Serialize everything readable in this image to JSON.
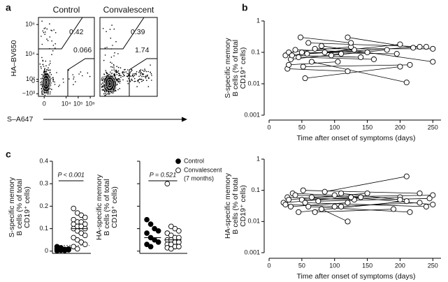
{
  "panel_labels": [
    "a",
    "b",
    "c"
  ],
  "chart_data": [
    {
      "type": "flow",
      "title": "Control",
      "ylabel": "HA–BV650",
      "xlabel": "S–A647",
      "xlim": [
        -400,
        2200000
      ],
      "ylim": [
        -1500,
        3000000
      ],
      "xticks": [
        0,
        {
          "value": 10000,
          "label": "10⁴"
        },
        {
          "value": 100000,
          "label": "10⁵"
        },
        {
          "value": 1000000,
          "label": "10⁶"
        }
      ],
      "yticks": [
        {
          "value": -1000,
          "label": "−10³"
        },
        0,
        {
          "value": 100,
          "label": "10²"
        },
        {
          "value": 10000,
          "label": "10⁴"
        },
        {
          "value": 1000000,
          "label": "10⁶"
        }
      ],
      "annotations": [
        "0.42",
        "0.066"
      ]
    },
    {
      "type": "flow",
      "title": "Convalescent",
      "annotations": [
        "0.39",
        "1.74"
      ]
    },
    {
      "type": "line",
      "ylabel": [
        "S-specific memory",
        "B cells (% of total",
        "CD19⁺ cells)"
      ],
      "xlabel": "Time after onset of symptoms (days)",
      "log_y": true,
      "color": "#000000",
      "xlim": [
        -7.5,
        262.5
      ],
      "ylim": [
        0.001,
        1
      ],
      "xticks": [
        0,
        50,
        100,
        150,
        200,
        250
      ],
      "yticks": [
        0.001,
        0.01,
        0.1,
        1
      ],
      "series": [
        {
          "x": [
            25,
            130
          ],
          "values": [
            0.08,
            0.12
          ]
        },
        {
          "x": [
            28,
            120
          ],
          "values": [
            0.03,
            0.025
          ]
        },
        {
          "x": [
            30,
            125
          ],
          "values": [
            0.1,
            0.15
          ]
        },
        {
          "x": [
            33,
            110
          ],
          "values": [
            0.06,
            0.09
          ]
        },
        {
          "x": [
            35,
            140
          ],
          "values": [
            0.08,
            0.07
          ]
        },
        {
          "x": [
            40,
            150
          ],
          "values": [
            0.12,
            0.1
          ]
        },
        {
          "x": [
            45,
            160
          ],
          "values": [
            0.07,
            0.06
          ]
        },
        {
          "x": [
            48,
            125
          ],
          "values": [
            0.3,
            0.2
          ]
        },
        {
          "x": [
            52,
            215
          ],
          "values": [
            0.035,
            0.04
          ]
        },
        {
          "x": [
            55,
            200
          ],
          "values": [
            0.015,
            0.035
          ]
        },
        {
          "x": [
            58,
            230
          ],
          "values": [
            0.09,
            0.15
          ]
        },
        {
          "x": [
            60,
            240
          ],
          "values": [
            0.2,
            0.15
          ]
        },
        {
          "x": [
            65,
            210
          ],
          "values": [
            0.05,
            0.011
          ]
        },
        {
          "x": [
            70,
            250
          ],
          "values": [
            0.13,
            0.13
          ]
        },
        {
          "x": [
            80,
            250
          ],
          "values": [
            0.16,
            0.05
          ]
        },
        {
          "x": [
            85,
            200
          ],
          "values": [
            0.1,
            0.18
          ]
        },
        {
          "x": [
            95,
            180
          ],
          "values": [
            0.08,
            0.12
          ]
        },
        {
          "x": [
            120,
            220
          ],
          "values": [
            0.3,
            0.14
          ]
        },
        {
          "x": [
            30,
            105
          ],
          "values": [
            0.04,
            0.05
          ]
        },
        {
          "x": [
            50,
            195
          ],
          "values": [
            0.1,
            0.09
          ]
        }
      ]
    },
    {
      "type": "line",
      "ylabel": [
        "HA-specific memory",
        "B cells (% of total",
        "CD19⁺ cells)"
      ],
      "xlabel": "Time after onset of symptoms (days)",
      "log_y": true,
      "color": "#000000",
      "xlim": [
        -7.5,
        262.5
      ],
      "ylim": [
        0.001,
        1
      ],
      "xticks": [
        0,
        50,
        100,
        150,
        200,
        250
      ],
      "yticks": [
        0.001,
        0.01,
        0.1,
        1
      ],
      "series": [
        {
          "x": [
            22,
            125
          ],
          "values": [
            0.04,
            0.06
          ]
        },
        {
          "x": [
            25,
            110
          ],
          "values": [
            0.035,
            0.03
          ]
        },
        {
          "x": [
            28,
            130
          ],
          "values": [
            0.06,
            0.05
          ]
        },
        {
          "x": [
            30,
            150
          ],
          "values": [
            0.05,
            0.08
          ]
        },
        {
          "x": [
            33,
            120
          ],
          "values": [
            0.03,
            0.04
          ]
        },
        {
          "x": [
            36,
            100
          ],
          "values": [
            0.08,
            0.07
          ]
        },
        {
          "x": [
            40,
            140
          ],
          "values": [
            0.07,
            0.06
          ]
        },
        {
          "x": [
            45,
            210
          ],
          "values": [
            0.02,
            0.045
          ]
        },
        {
          "x": [
            50,
            200
          ],
          "values": [
            0.05,
            0.06
          ]
        },
        {
          "x": [
            52,
            230
          ],
          "values": [
            0.1,
            0.08
          ]
        },
        {
          "x": [
            55,
            240
          ],
          "values": [
            0.04,
            0.03
          ]
        },
        {
          "x": [
            60,
            215
          ],
          "values": [
            0.03,
            0.02
          ]
        },
        {
          "x": [
            65,
            250
          ],
          "values": [
            0.06,
            0.07
          ]
        },
        {
          "x": [
            70,
            190
          ],
          "values": [
            0.02,
            0.025
          ]
        },
        {
          "x": [
            75,
            245
          ],
          "values": [
            0.045,
            0.055
          ]
        },
        {
          "x": [
            80,
            120
          ],
          "values": [
            0.025,
            0.01
          ]
        },
        {
          "x": [
            85,
            210
          ],
          "values": [
            0.09,
            0.28
          ]
        },
        {
          "x": [
            100,
            230
          ],
          "values": [
            0.03,
            0.04
          ]
        },
        {
          "x": [
            110,
            200
          ],
          "values": [
            0.08,
            0.05
          ]
        },
        {
          "x": [
            125,
            250
          ],
          "values": [
            0.06,
            0.035
          ]
        }
      ]
    },
    {
      "type": "strip",
      "ylabel": [
        "S-specific memory",
        "B cells (% of total",
        "CD19⁺ cells)"
      ],
      "ylim": [
        -0.01,
        0.4
      ],
      "yticks": [
        0,
        0.1,
        0.2,
        0.3,
        0.4
      ],
      "annotation": "P < 0.001",
      "medians": [
        0.008,
        0.1
      ],
      "reference_line": 0.025,
      "series": [
        {
          "filled": true,
          "values": [
            0.002,
            0.005,
            0.008,
            0.01,
            0.012,
            0.015,
            0.003,
            0.006,
            0.02,
            0.004
          ]
        },
        {
          "filled": false,
          "values": [
            0.19,
            0.17,
            0.16,
            0.15,
            0.14,
            0.13,
            0.13,
            0.12,
            0.12,
            0.11,
            0.11,
            0.1,
            0.1,
            0.09,
            0.08,
            0.07,
            0.06,
            0.05,
            0.04,
            0.03,
            0.02,
            0.01
          ]
        }
      ]
    },
    {
      "type": "strip",
      "ylabel": [
        "HA-specific memory",
        "B cells (% of total",
        "CD19⁺ cells)"
      ],
      "ylim": [
        -0.01,
        0.4
      ],
      "yticks": [
        0,
        0.1,
        0.2,
        0.3,
        0.4
      ],
      "tick_labels": false,
      "annotation": "P = 0.521",
      "medians": [
        0.06,
        0.05
      ],
      "legend": true,
      "legend_note": "(7 months)",
      "series": [
        {
          "name": "Control",
          "filled": true,
          "values": [
            0.14,
            0.12,
            0.1,
            0.09,
            0.08,
            0.06,
            0.05,
            0.04,
            0.03,
            0.02
          ]
        },
        {
          "name": "Convalescent",
          "filled": false,
          "values": [
            0.3,
            0.11,
            0.1,
            0.09,
            0.08,
            0.07,
            0.06,
            0.06,
            0.05,
            0.05,
            0.04,
            0.04,
            0.03,
            0.03,
            0.02,
            0.02,
            0.015,
            0.01
          ]
        }
      ]
    }
  ]
}
